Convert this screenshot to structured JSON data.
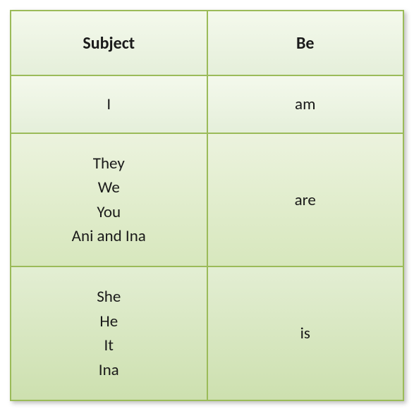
{
  "table": {
    "type": "table",
    "columns": [
      {
        "label": "Subject",
        "width_pct": 50,
        "align": "center"
      },
      {
        "label": "Be",
        "width_pct": 50,
        "align": "center"
      }
    ],
    "rows": [
      {
        "subject_lines": [
          "I"
        ],
        "be": "am"
      },
      {
        "subject_lines": [
          "They",
          "We",
          "You",
          "Ani and Ina"
        ],
        "be": "are"
      },
      {
        "subject_lines": [
          "She",
          "He",
          "It",
          "Ina"
        ],
        "be": "is"
      }
    ],
    "border_color": "#9bbb59",
    "header_bg_gradient": [
      "#f4f9ec",
      "#e5efda"
    ],
    "row_bg_gradients": [
      [
        "#f4f9ec",
        "#e5efda"
      ],
      [
        "#ecf3de",
        "#d7e7bd"
      ],
      [
        "#e3eed3",
        "#cde0af"
      ]
    ],
    "header_fontsize": 24,
    "cell_fontsize": 23,
    "font_family": "Calibri",
    "text_color": "#1a1a1a",
    "shadow_color": "rgba(0,0,0,0.25)"
  }
}
